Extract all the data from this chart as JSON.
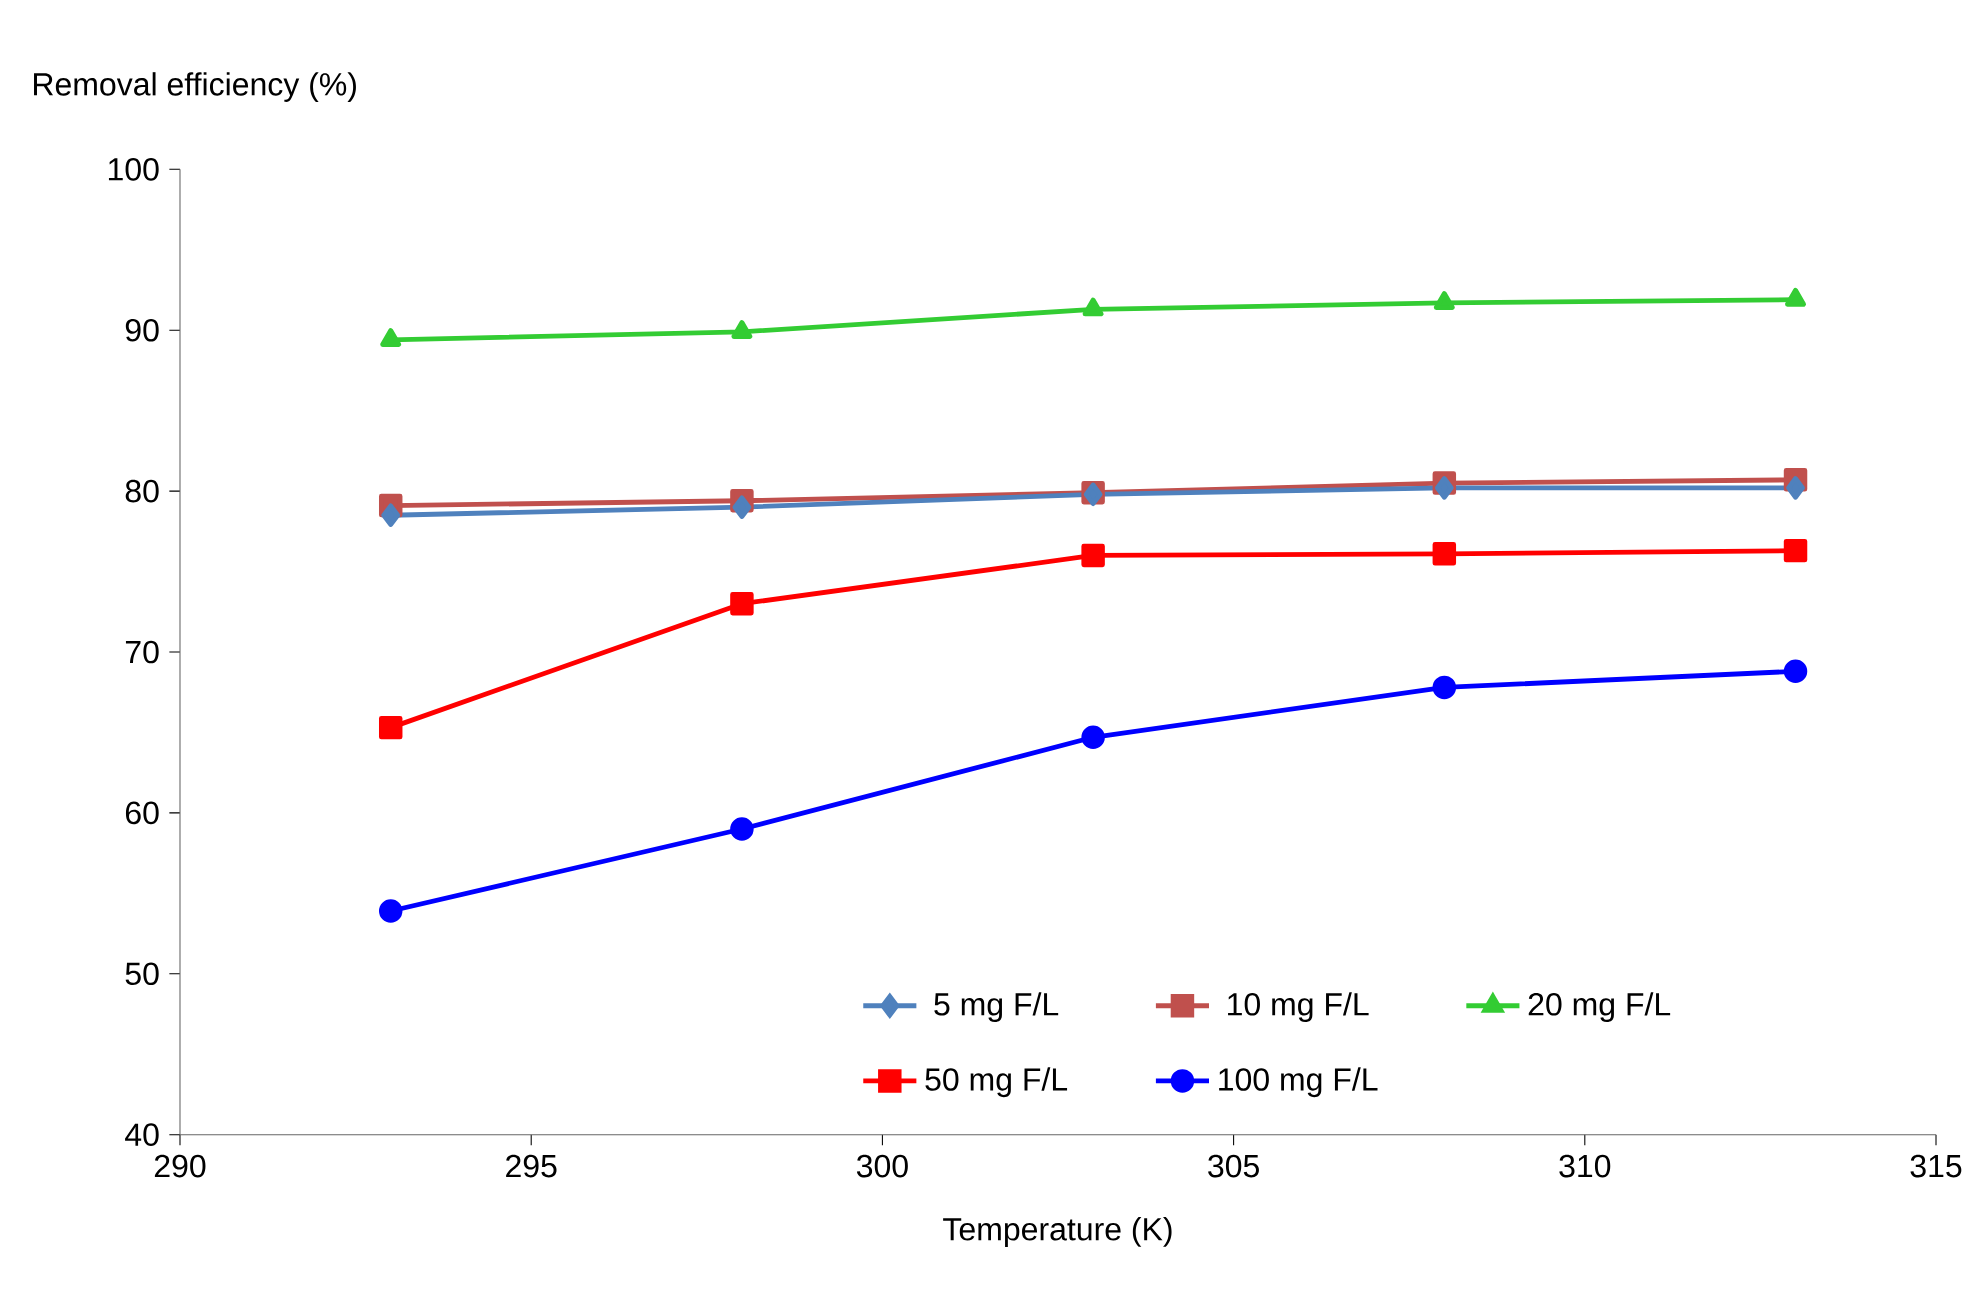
{
  "chart_data": {
    "type": "line",
    "xlabel": "Temperature (K)",
    "ylabel": "Removal efficiency (%)",
    "x": [
      293,
      298,
      303,
      308,
      313
    ],
    "series": [
      {
        "name": "5 mg F/L",
        "color": "#4f81bd",
        "marker": "diamond",
        "values": [
          78.5,
          79.0,
          79.8,
          80.2,
          80.2
        ]
      },
      {
        "name": "10 mg F/L",
        "color": "#c0504d",
        "marker": "square",
        "values": [
          79.1,
          79.4,
          79.9,
          80.5,
          80.7
        ]
      },
      {
        "name": "20 mg F/L",
        "color": "#33cc33",
        "marker": "triangle",
        "values": [
          89.4,
          89.9,
          91.3,
          91.7,
          91.9
        ]
      },
      {
        "name": "50 mg F/L",
        "color": "#ff0000",
        "marker": "square",
        "values": [
          65.3,
          73.0,
          76.0,
          76.1,
          76.3
        ]
      },
      {
        "name": "100 mg F/L",
        "color": "#0000ff",
        "marker": "circle",
        "values": [
          53.9,
          59.0,
          64.7,
          67.8,
          68.8
        ]
      }
    ],
    "xlim": [
      290,
      315
    ],
    "xticks": [
      290,
      295,
      300,
      305,
      310,
      315
    ],
    "ylim": [
      40,
      100
    ],
    "yticks": [
      40,
      50,
      60,
      70,
      80,
      90,
      100
    ],
    "legend": "bottom",
    "grid": false,
    "line_style": "solid"
  }
}
